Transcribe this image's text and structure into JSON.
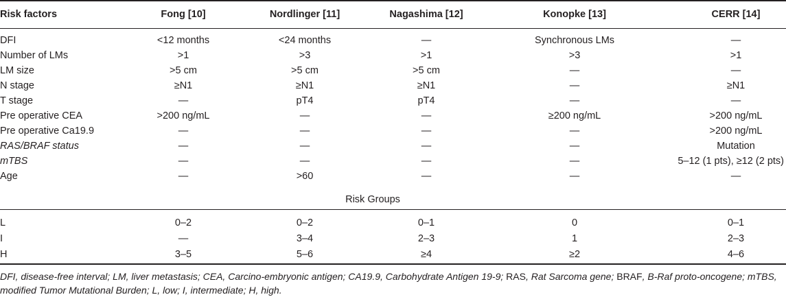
{
  "headers": [
    "Risk factors",
    "Fong [10]",
    "Nordlinger [11]",
    "Nagashima [12]",
    "Konopke [13]",
    "CERR [14]"
  ],
  "rows": [
    [
      "DFI",
      "<12 months",
      "<24 months",
      "—",
      "Synchronous LMs",
      "—"
    ],
    [
      "Number of LMs",
      ">1",
      ">3",
      ">1",
      ">3",
      ">1"
    ],
    [
      "LM size",
      ">5 cm",
      ">5 cm",
      ">5 cm",
      "—",
      "—"
    ],
    [
      "N stage",
      "≥N1",
      "≥N1",
      "≥N1",
      "—",
      "≥N1"
    ],
    [
      "T stage",
      "—",
      "pT4",
      "pT4",
      "—",
      "—"
    ],
    [
      "Pre operative CEA",
      ">200 ng/mL",
      "—",
      "—",
      "≥200 ng/mL",
      ">200 ng/mL"
    ],
    [
      "Pre operative Ca19.9",
      "—",
      "—",
      "—",
      "—",
      ">200 ng/mL"
    ],
    [
      "RAS/BRAF status",
      "—",
      "—",
      "—",
      "—",
      "Mutation"
    ],
    [
      "mTBS",
      "—",
      "—",
      "—",
      "—",
      "5–12 (1 pts), ≥12 (2 pts)"
    ],
    [
      "Age",
      "—",
      ">60",
      "—",
      "—",
      "—"
    ]
  ],
  "risk_groups_label": "Risk Groups",
  "group_rows": [
    [
      "L",
      "0–2",
      "0–2",
      "0–1",
      "0",
      "0–1"
    ],
    [
      "I",
      "—",
      "3–4",
      "2–3",
      "1",
      "2–3"
    ],
    [
      "H",
      "3–5",
      "5–6",
      "≥4",
      "≥2",
      "4–6"
    ]
  ],
  "footnote": {
    "part1": "DFI, disease-free interval; LM, liver metastasis; CEA, Carcino-embryonic antigen; CA19.9, Carbohydrate Antigen 19-9; ",
    "ras": "RAS",
    "part2": ", Rat Sarcoma gene; ",
    "braf": "BRAF",
    "part3": ", B-Raf proto-oncogene; mTBS,",
    "line2": "modified Tumor Mutational Burden; L, low; I, intermediate; H, high."
  }
}
